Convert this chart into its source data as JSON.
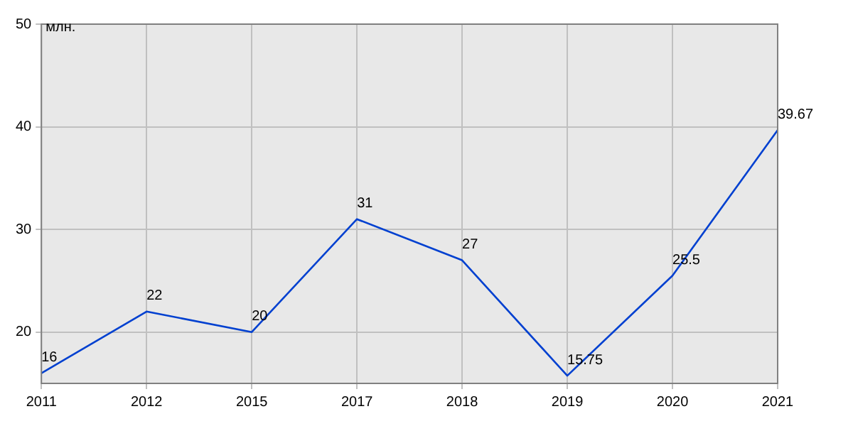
{
  "chart_data": {
    "type": "line",
    "ylabel": "млн.",
    "categories": [
      "2011",
      "2012",
      "2015",
      "2017",
      "2018",
      "2019",
      "2020",
      "2021"
    ],
    "series": [
      {
        "color": "#0040d0",
        "values": [
          16,
          22,
          20,
          31,
          27,
          15.75,
          25.5,
          39.67
        ]
      }
    ],
    "ylim": [
      15,
      50
    ],
    "yticks": [
      20,
      30,
      40,
      50
    ],
    "grid": true,
    "legend": false,
    "data_labels": true,
    "marker": "none",
    "line_style": "solid"
  }
}
